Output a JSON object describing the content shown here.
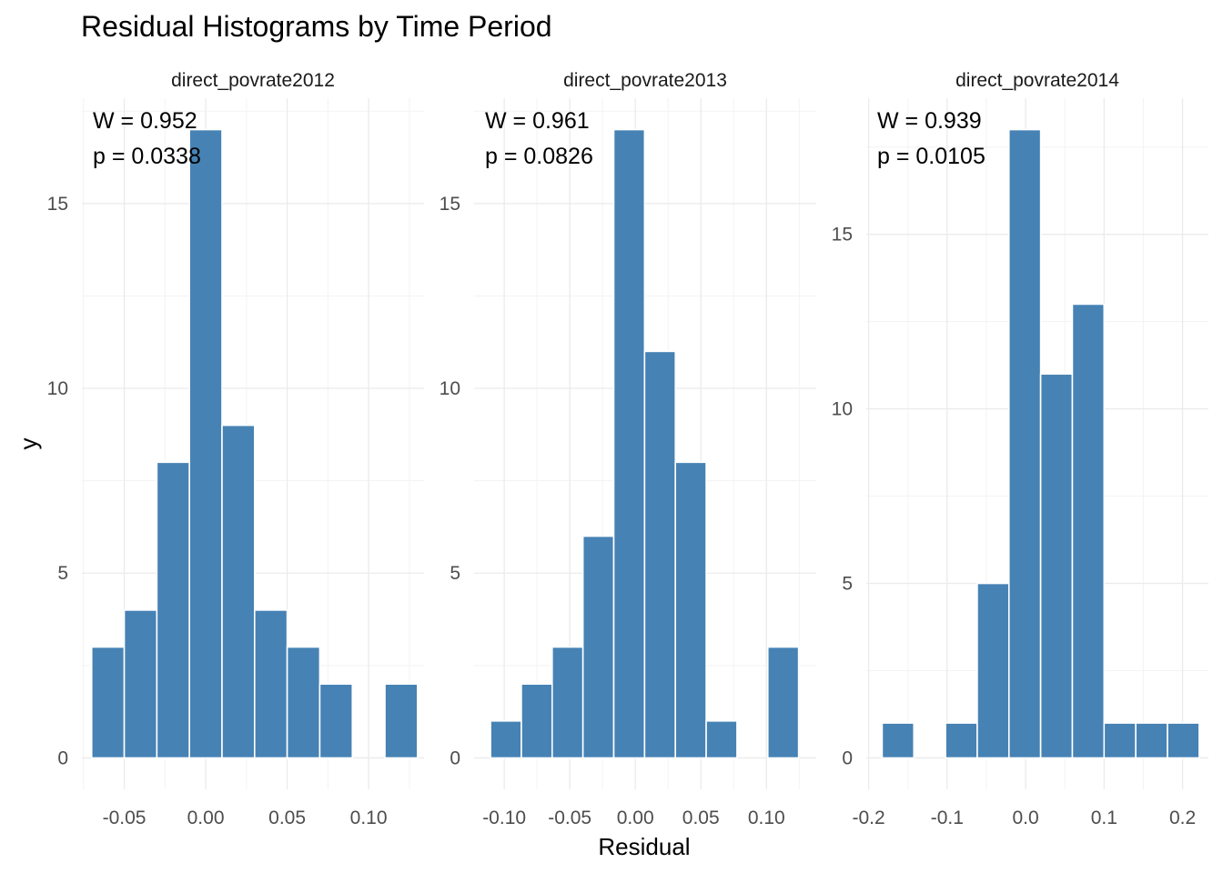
{
  "chart_data": {
    "type": "bar",
    "title": "Residual Histograms by Time Period",
    "xlabel": "Residual",
    "ylabel": "y",
    "grid": true,
    "legend": "none",
    "colors": {
      "bar_fill": "#4682B4",
      "bar_edge": "#ffffff",
      "grid": "#EBEBEB"
    },
    "panels": [
      {
        "name": "direct_povrate2012",
        "stat_lines": [
          "W = 0.952",
          "p = 0.0338"
        ],
        "x_ticks": [
          -0.05,
          0.0,
          0.05,
          0.1
        ],
        "x_tick_labels": [
          "-0.05",
          "0.00",
          "0.05",
          "0.10"
        ],
        "y_ticks": [
          0,
          5,
          10,
          15
        ],
        "y_tick_labels": [
          "0",
          "5",
          "10",
          "15"
        ],
        "xlim": [
          -0.076,
          0.134
        ],
        "ylim": [
          -0.85,
          17.85
        ],
        "bin_width": 0.02,
        "bin_centers": [
          -0.06,
          -0.04,
          -0.02,
          0.0,
          0.02,
          0.04,
          0.06,
          0.08,
          0.1,
          0.12
        ],
        "counts": [
          3,
          4,
          8,
          17,
          9,
          4,
          3,
          2,
          0,
          2
        ]
      },
      {
        "name": "direct_povrate2013",
        "stat_lines": [
          "W = 0.961",
          "p = 0.0826"
        ],
        "x_ticks": [
          -0.1,
          -0.05,
          0.0,
          0.05,
          0.1
        ],
        "x_tick_labels": [
          "-0.10",
          "-0.05",
          "0.00",
          "0.05",
          "0.10"
        ],
        "y_ticks": [
          0,
          5,
          10,
          15
        ],
        "y_tick_labels": [
          "0",
          "5",
          "10",
          "15"
        ],
        "xlim": [
          -0.123,
          0.138
        ],
        "ylim": [
          -0.85,
          17.85
        ],
        "bin_width": 0.0235,
        "bin_centers": [
          -0.0987,
          -0.0752,
          -0.0517,
          -0.0282,
          -0.0047,
          0.0188,
          0.0423,
          0.0658,
          0.0893,
          0.1128
        ],
        "counts": [
          1,
          2,
          3,
          6,
          17,
          11,
          8,
          1,
          0,
          3
        ]
      },
      {
        "name": "direct_povrate2014",
        "stat_lines": [
          "W = 0.939",
          "p = 0.0105"
        ],
        "x_ticks": [
          -0.2,
          -0.1,
          0.0,
          0.1,
          0.2
        ],
        "x_tick_labels": [
          "-0.2",
          "-0.1",
          "0.0",
          "0.1",
          "0.2"
        ],
        "y_ticks": [
          0,
          5,
          10,
          15
        ],
        "y_tick_labels": [
          "0",
          "5",
          "10",
          "15"
        ],
        "xlim": [
          -0.203,
          0.233
        ],
        "ylim": [
          -0.9,
          18.9
        ],
        "bin_width": 0.0404,
        "bin_centers": [
          -0.1626,
          -0.1222,
          -0.0818,
          -0.0414,
          -0.001,
          0.0394,
          0.0798,
          0.1202,
          0.1606,
          0.201
        ],
        "counts": [
          1,
          0,
          1,
          5,
          18,
          11,
          13,
          1,
          1,
          1
        ]
      }
    ]
  }
}
